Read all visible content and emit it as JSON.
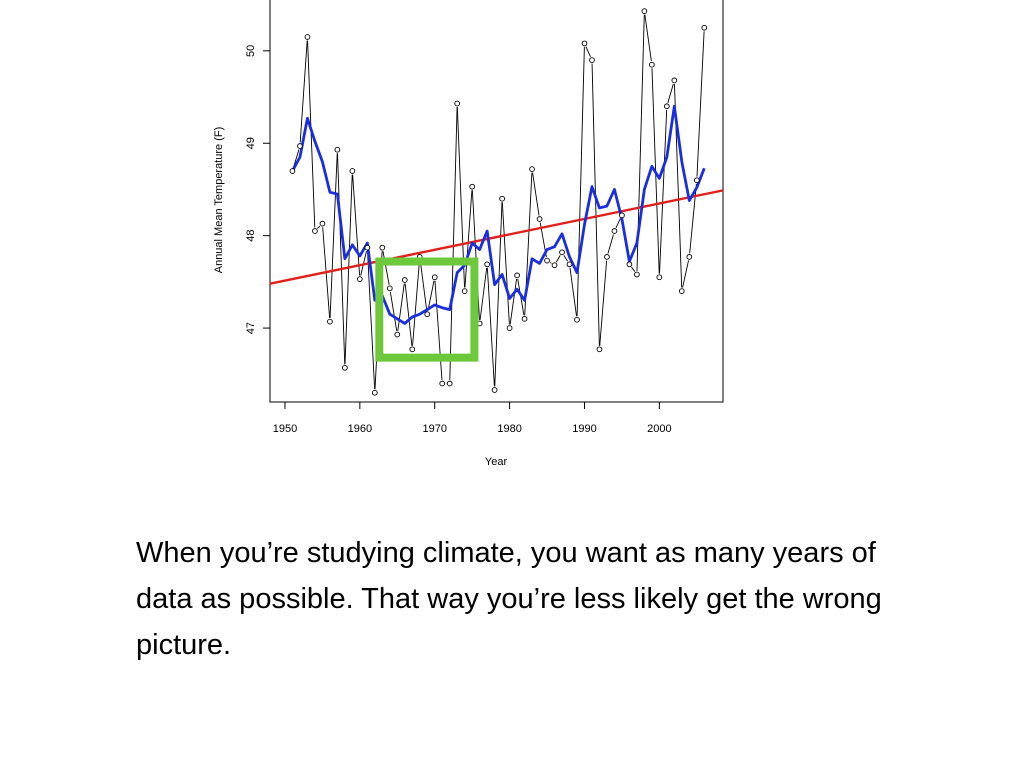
{
  "chart_data": {
    "type": "line",
    "title": "",
    "xlabel": "Year",
    "ylabel": "Annual Mean Temperature (F)",
    "xlim": [
      1948,
      2008.5
    ],
    "ylim": [
      46.2,
      50.55
    ],
    "xticks": [
      1950,
      1960,
      1970,
      1980,
      1990,
      2000
    ],
    "yticks": [
      47,
      48,
      49,
      50
    ],
    "grid": false,
    "legend": "none",
    "series": [
      {
        "style": "points-and-line",
        "color": "#000000",
        "x": [
          1951,
          1952,
          1953,
          1954,
          1955,
          1956,
          1957,
          1958,
          1959,
          1960,
          1961,
          1962,
          1963,
          1964,
          1965,
          1966,
          1967,
          1968,
          1969,
          1970,
          1971,
          1972,
          1973,
          1974,
          1975,
          1976,
          1977,
          1978,
          1979,
          1980,
          1981,
          1982,
          1983,
          1984,
          1985,
          1986,
          1987,
          1988,
          1989,
          1990,
          1991,
          1992,
          1993,
          1994,
          1995,
          1996,
          1997,
          1998,
          1999,
          2000,
          2001,
          2002,
          2003,
          2004,
          2005,
          2006
        ],
        "y": [
          48.7,
          48.97,
          50.15,
          48.05,
          48.13,
          47.07,
          48.93,
          46.57,
          48.7,
          47.53,
          47.87,
          46.3,
          47.87,
          47.43,
          46.93,
          47.52,
          46.77,
          47.77,
          47.15,
          47.55,
          46.4,
          46.4,
          49.43,
          47.4,
          48.53,
          47.05,
          47.69,
          46.33,
          48.4,
          47.0,
          47.57,
          47.1,
          48.72,
          48.18,
          47.73,
          47.68,
          47.82,
          47.69,
          47.09,
          50.08,
          49.9,
          46.77,
          47.77,
          48.05,
          48.22,
          47.69,
          47.58,
          50.43,
          49.85,
          47.55,
          49.4,
          49.68,
          47.4,
          47.77,
          48.6,
          50.25
        ]
      },
      {
        "style": "smoothed-line",
        "color": "#1a2ee0",
        "x": [
          1951,
          1952,
          1953,
          1954,
          1955,
          1956,
          1957,
          1958,
          1959,
          1960,
          1961,
          1962,
          1963,
          1964,
          1965,
          1966,
          1967,
          1968,
          1969,
          1970,
          1971,
          1972,
          1973,
          1974,
          1975,
          1976,
          1977,
          1978,
          1979,
          1980,
          1981,
          1982,
          1983,
          1984,
          1985,
          1986,
          1987,
          1988,
          1989,
          1990,
          1991,
          1992,
          1993,
          1994,
          1995,
          1996,
          1997,
          1998,
          1999,
          2000,
          2001,
          2002,
          2003,
          2004,
          2005,
          2006
        ],
        "y": [
          48.7,
          48.85,
          49.27,
          49.02,
          48.8,
          48.47,
          48.45,
          47.75,
          47.9,
          47.78,
          47.92,
          47.3,
          47.35,
          47.15,
          47.1,
          47.05,
          47.12,
          47.15,
          47.2,
          47.25,
          47.22,
          47.2,
          47.6,
          47.68,
          47.92,
          47.85,
          48.05,
          47.47,
          47.58,
          47.32,
          47.42,
          47.3,
          47.75,
          47.7,
          47.85,
          47.88,
          48.02,
          47.77,
          47.6,
          48.12,
          48.53,
          48.3,
          48.32,
          48.5,
          48.18,
          47.72,
          47.92,
          48.5,
          48.75,
          48.62,
          48.85,
          49.4,
          48.8,
          48.38,
          48.52,
          48.73
        ]
      },
      {
        "style": "trend-line",
        "color": "#e0201a",
        "x": [
          1948,
          2008.5
        ],
        "y": [
          47.48,
          48.49
        ]
      }
    ],
    "annotations": [
      {
        "type": "highlight-box",
        "color": "#6dc83c",
        "x_range": [
          1962.6,
          1975.3
        ],
        "y_range": [
          46.68,
          47.72
        ]
      }
    ]
  },
  "caption": "When you’re studying climate, you want as many years of data as possible. That way you’re less likely get the wrong picture."
}
